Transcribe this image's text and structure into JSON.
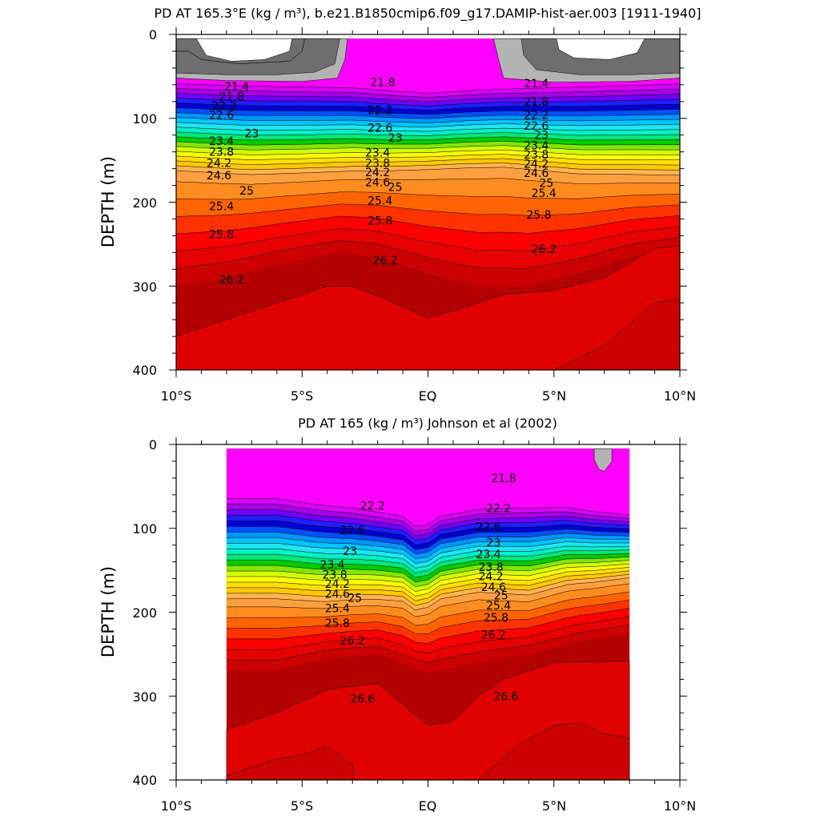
{
  "chart_data": [
    {
      "type": "contour",
      "title": "PD AT 165.3°E (kg / m³), b.e21.B1850cmip6.f09_g17.DAMIP-hist-aer.003 [1911-1940]",
      "ylabel": "DEPTH (m)",
      "xlabel": "",
      "xlim": [
        -10,
        10
      ],
      "ylim": [
        400,
        0
      ],
      "x_ticks": [
        -10,
        -5,
        0,
        5,
        10
      ],
      "x_tick_labels": [
        "10°S",
        "5°S",
        "EQ",
        "5°N",
        "10°N"
      ],
      "y_ticks": [
        0,
        100,
        200,
        300,
        400
      ],
      "y_tick_labels": [
        "0",
        "100",
        "200",
        "300",
        "400"
      ],
      "data_x_range": [
        -10,
        10
      ],
      "data_depth_range": [
        5,
        400
      ],
      "contour_labels": [
        {
          "text": "21.4",
          "lat": -7.6,
          "depth": 62
        },
        {
          "text": "21.8",
          "lat": -7.8,
          "depth": 74
        },
        {
          "text": "22.2",
          "lat": -8.1,
          "depth": 85
        },
        {
          "text": "22.6",
          "lat": -8.2,
          "depth": 96
        },
        {
          "text": "23",
          "lat": -7.0,
          "depth": 118
        },
        {
          "text": "23.4",
          "lat": -8.2,
          "depth": 127
        },
        {
          "text": "23.8",
          "lat": -8.2,
          "depth": 140
        },
        {
          "text": "24.2",
          "lat": -8.3,
          "depth": 153
        },
        {
          "text": "24.6",
          "lat": -8.3,
          "depth": 168
        },
        {
          "text": "25",
          "lat": -7.2,
          "depth": 186
        },
        {
          "text": "25.4",
          "lat": -8.2,
          "depth": 205
        },
        {
          "text": "25.8",
          "lat": -8.2,
          "depth": 238
        },
        {
          "text": "26.2",
          "lat": -7.8,
          "depth": 292
        },
        {
          "text": "21.8",
          "lat": -1.8,
          "depth": 57
        },
        {
          "text": "22.2",
          "lat": -1.9,
          "depth": 90
        },
        {
          "text": "22.6",
          "lat": -1.9,
          "depth": 111
        },
        {
          "text": "23",
          "lat": -1.3,
          "depth": 123
        },
        {
          "text": "23.4",
          "lat": -2.0,
          "depth": 141
        },
        {
          "text": "23.8",
          "lat": -2.0,
          "depth": 153
        },
        {
          "text": "24.2",
          "lat": -2.0,
          "depth": 164
        },
        {
          "text": "24.6",
          "lat": -2.0,
          "depth": 176
        },
        {
          "text": "25",
          "lat": -1.3,
          "depth": 182
        },
        {
          "text": "25.4",
          "lat": -1.9,
          "depth": 198
        },
        {
          "text": "25.8",
          "lat": -1.9,
          "depth": 222
        },
        {
          "text": "26.2",
          "lat": -1.7,
          "depth": 269
        },
        {
          "text": "21.4",
          "lat": 4.3,
          "depth": 58
        },
        {
          "text": "21.8",
          "lat": 4.3,
          "depth": 80
        },
        {
          "text": "22.2",
          "lat": 4.3,
          "depth": 96
        },
        {
          "text": "22.6",
          "lat": 4.3,
          "depth": 109
        },
        {
          "text": "23",
          "lat": 4.5,
          "depth": 120
        },
        {
          "text": "23.4",
          "lat": 4.3,
          "depth": 132
        },
        {
          "text": "23.8",
          "lat": 4.3,
          "depth": 143
        },
        {
          "text": "24.2",
          "lat": 4.3,
          "depth": 154
        },
        {
          "text": "24.6",
          "lat": 4.3,
          "depth": 165
        },
        {
          "text": "25",
          "lat": 4.7,
          "depth": 177
        },
        {
          "text": "25.4",
          "lat": 4.6,
          "depth": 189
        },
        {
          "text": "25.8",
          "lat": 4.4,
          "depth": 215
        },
        {
          "text": "26.2",
          "lat": 4.6,
          "depth": 256
        }
      ]
    },
    {
      "type": "contour",
      "title": "PD AT 165 (kg / m³) Johnson et al (2002)",
      "ylabel": "DEPTH (m)",
      "xlabel": "",
      "xlim": [
        -10,
        10
      ],
      "ylim": [
        400,
        0
      ],
      "x_ticks": [
        -10,
        -5,
        0,
        5,
        10
      ],
      "x_tick_labels": [
        "10°S",
        "5°S",
        "EQ",
        "5°N",
        "10°N"
      ],
      "y_ticks": [
        0,
        100,
        200,
        300,
        400
      ],
      "y_tick_labels": [
        "0",
        "100",
        "200",
        "300",
        "400"
      ],
      "data_x_range": [
        -8,
        8
      ],
      "data_depth_range": [
        5,
        400
      ],
      "contour_labels": [
        {
          "text": "21.8",
          "lat": 3.0,
          "depth": 40
        },
        {
          "text": "22.2",
          "lat": -2.2,
          "depth": 73
        },
        {
          "text": "22.2",
          "lat": 2.8,
          "depth": 76
        },
        {
          "text": "22.6",
          "lat": -3.0,
          "depth": 102
        },
        {
          "text": "22.6",
          "lat": 2.4,
          "depth": 98
        },
        {
          "text": "23",
          "lat": -3.1,
          "depth": 127
        },
        {
          "text": "23",
          "lat": 2.6,
          "depth": 117
        },
        {
          "text": "23.4",
          "lat": -3.8,
          "depth": 143
        },
        {
          "text": "23.4",
          "lat": 2.4,
          "depth": 131
        },
        {
          "text": "23.8",
          "lat": -3.7,
          "depth": 155
        },
        {
          "text": "23.8",
          "lat": 2.5,
          "depth": 146
        },
        {
          "text": "24.2",
          "lat": -3.6,
          "depth": 166
        },
        {
          "text": "24.2",
          "lat": 2.5,
          "depth": 157
        },
        {
          "text": "24.6",
          "lat": -3.6,
          "depth": 178
        },
        {
          "text": "24.6",
          "lat": 2.6,
          "depth": 170
        },
        {
          "text": "25",
          "lat": -2.9,
          "depth": 183
        },
        {
          "text": "25",
          "lat": 2.9,
          "depth": 180
        },
        {
          "text": "25.4",
          "lat": -3.6,
          "depth": 195
        },
        {
          "text": "25.4",
          "lat": 2.8,
          "depth": 192
        },
        {
          "text": "25.8",
          "lat": -3.6,
          "depth": 213
        },
        {
          "text": "25.8",
          "lat": 2.7,
          "depth": 206
        },
        {
          "text": "26.2",
          "lat": -3.0,
          "depth": 234
        },
        {
          "text": "26.2",
          "lat": 2.6,
          "depth": 227
        },
        {
          "text": "26.6",
          "lat": -2.6,
          "depth": 303
        },
        {
          "text": "26.6",
          "lat": 3.1,
          "depth": 300
        }
      ]
    }
  ]
}
